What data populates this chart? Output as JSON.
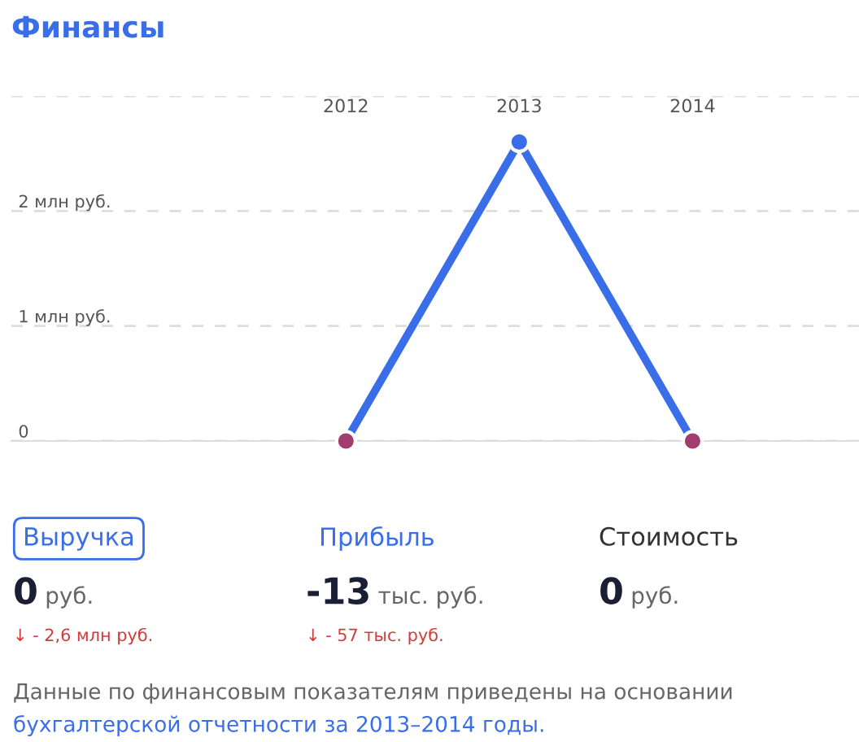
{
  "chart_data": [
    {
      "type": "line",
      "title": "Финансы",
      "categories": [
        "2012",
        "2013",
        "2014"
      ],
      "series": [
        {
          "color": "#3a6ee8",
          "colors": [
            "#a23d6e",
            "#3a6ee8",
            "#a23d6e"
          ],
          "values": [
            0,
            2.6,
            0
          ]
        }
      ],
      "ylim": [
        0,
        3
      ],
      "yticks": [
        {
          "value": 0,
          "label": "0"
        },
        {
          "value": 1,
          "label": "1 млн руб."
        },
        {
          "value": 2,
          "label": "2 млн руб."
        },
        {
          "value": 3,
          "label": null
        }
      ],
      "grid": "y",
      "marker": "circle",
      "line_style": "solid",
      "legend": false
    },
    {
      "type": "other",
      "annotations": [
        "Выручка",
        "0",
        "руб.",
        "↓ - 2,6 млн руб.",
        "Прибыль",
        "-13",
        "тыс. руб.",
        "↓ - 57 тыс. руб.",
        "Стоимость",
        "0",
        "руб.",
        "Данные по финансовым показателям приведены на основании",
        "бухгалтерской отчетности за 2013–2014 годы."
      ]
    }
  ]
}
